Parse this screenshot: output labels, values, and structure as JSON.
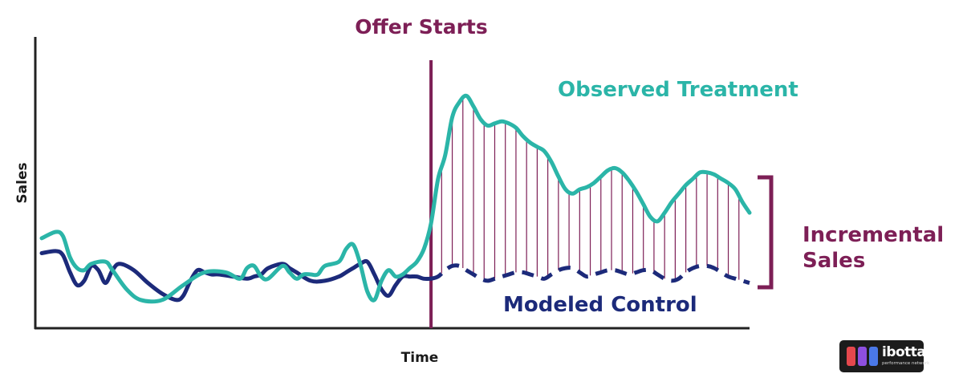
{
  "chart_data": {
    "type": "line",
    "xlabel": "Time",
    "ylabel": "Sales",
    "xlim": [
      0,
      100
    ],
    "ylim": [
      0,
      100
    ],
    "grid": false,
    "event": {
      "label": "Offer Starts",
      "x": 55
    },
    "series": [
      {
        "name": "Observed Treatment",
        "color": "#2bb5a8",
        "style": "solid",
        "x": [
          0,
          2,
          3,
          4,
          5,
          6,
          7,
          9,
          10,
          12,
          14,
          17,
          20,
          23,
          26,
          28,
          29,
          30,
          31,
          32,
          34,
          35,
          36,
          37,
          38,
          39,
          40,
          42,
          43,
          44,
          45,
          46,
          47,
          48,
          49,
          50,
          51,
          52,
          53,
          54,
          55,
          56,
          57,
          58,
          59,
          60,
          61,
          62,
          63,
          64,
          65,
          66,
          67,
          68,
          69,
          70,
          71,
          72,
          73,
          74,
          75,
          76,
          77,
          78,
          79,
          80,
          81,
          82,
          83,
          84,
          85,
          86,
          87,
          88,
          89,
          90,
          91,
          92,
          93,
          94,
          95,
          96,
          97,
          98,
          99,
          100
        ],
        "values": [
          37,
          40,
          38,
          28,
          23,
          22,
          25,
          26,
          22,
          13,
          8,
          8,
          15,
          21,
          21,
          18,
          23,
          24,
          19,
          18,
          24,
          21,
          18,
          20,
          20,
          20,
          24,
          26,
          32,
          34,
          25,
          12,
          8,
          17,
          22,
          19,
          20,
          23,
          26,
          32,
          44,
          65,
          76,
          94,
          101,
          104,
          99,
          93,
          90,
          91,
          92,
          91,
          89,
          85,
          82,
          80,
          78,
          73,
          66,
          60,
          58,
          60,
          61,
          63,
          66,
          69,
          70,
          68,
          64,
          59,
          53,
          47,
          45,
          49,
          54,
          58,
          62,
          65,
          68,
          68,
          67,
          65,
          63,
          60,
          54,
          49
        ]
      },
      {
        "name": "Modeled Control",
        "color": "#1c2a7a",
        "style": "solid-then-dashed",
        "dash_from_x": 55,
        "x": [
          0,
          2,
          3,
          4,
          5,
          6,
          7,
          8,
          9,
          10,
          11,
          13,
          15,
          17,
          19,
          20,
          21,
          22,
          23,
          24,
          25,
          27,
          29,
          30,
          31,
          32,
          34,
          35,
          36,
          38,
          40,
          42,
          43,
          44,
          45,
          46,
          47,
          48,
          49,
          50,
          51,
          52,
          53,
          54,
          55,
          56,
          57,
          58,
          59,
          60,
          61,
          62,
          63,
          64,
          65,
          66,
          67,
          68,
          69,
          70,
          71,
          72,
          73,
          74,
          75,
          76,
          77,
          78,
          79,
          80,
          81,
          82,
          83,
          84,
          85,
          86,
          87,
          88,
          89,
          90,
          91,
          92,
          93,
          94,
          95,
          96,
          97,
          98,
          99,
          100
        ],
        "values": [
          30,
          31,
          29,
          21,
          15,
          17,
          24,
          22,
          16,
          22,
          25,
          22,
          16,
          11,
          8,
          10,
          17,
          22,
          21,
          20,
          20,
          19,
          18,
          19,
          20,
          23,
          25,
          23,
          21,
          17,
          17,
          19,
          21,
          23,
          25,
          26,
          20,
          13,
          10,
          15,
          19,
          19,
          19,
          18,
          18,
          19,
          22,
          24,
          24,
          22,
          20,
          18,
          17,
          18,
          19,
          20,
          21,
          21,
          20,
          19,
          18,
          20,
          22,
          23,
          23,
          21,
          19,
          20,
          21,
          22,
          22,
          21,
          20,
          21,
          22,
          22,
          20,
          18,
          17,
          18,
          21,
          23,
          24,
          24,
          23,
          21,
          19,
          18,
          17,
          16
        ]
      }
    ],
    "annotations": {
      "incremental": "Incremental Sales",
      "incremental_lines": [
        "Incremental",
        "Sales"
      ],
      "highlight_color": "#7d1f56"
    }
  },
  "logo": {
    "name": "ibotta",
    "tagline": "performance network",
    "colors": [
      "#e5484d",
      "#8e4fe0",
      "#4a78e8"
    ]
  }
}
